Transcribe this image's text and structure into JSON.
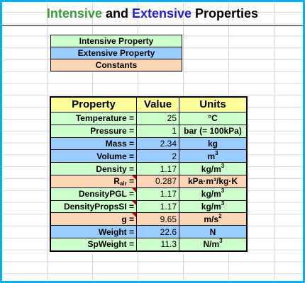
{
  "title": {
    "part1": "Intensive",
    "part2": " and ",
    "part3": "Extensive",
    "part4": " Properties"
  },
  "legend": {
    "intensive": "Intensive Property",
    "extensive": "Extensive Property",
    "constants": "Constants"
  },
  "table": {
    "headers": {
      "property": "Property",
      "value": "Value",
      "units": "Units"
    },
    "rows": [
      {
        "property": "Temperature =",
        "value": "25",
        "units": "°C",
        "type": "intensive"
      },
      {
        "property": "Pressure =",
        "value": "1",
        "units": "bar (= 100kPa)",
        "type": "intensive"
      },
      {
        "property": "Mass =",
        "value": "2.34",
        "units": "kg",
        "type": "extensive"
      },
      {
        "property": "Volume =",
        "value": "2",
        "units_base": "m",
        "units_sup": "3",
        "type": "extensive"
      },
      {
        "property": "Density =",
        "value": "1.17",
        "units_base": "kg/m",
        "units_sup": "3",
        "type": "intensive"
      },
      {
        "property_base": "R",
        "property_sub": "air",
        "property_tail": " =",
        "value": "0.287",
        "units": "kPa·m³/kg·K",
        "type": "constant"
      },
      {
        "property": "DensityPGL =",
        "value": "1.17",
        "units_base": "kg/m",
        "units_sup": "3",
        "type": "intensive"
      },
      {
        "property": "DensityPropsSI =",
        "value": "1.17",
        "units_base": "kg/m",
        "units_sup": "3",
        "type": "intensive"
      },
      {
        "property": "g =",
        "value": "9.65",
        "units_base": "m/s",
        "units_sup": "2",
        "type": "constant"
      },
      {
        "property": "Weight =",
        "value": "22.6",
        "units": "N",
        "type": "extensive"
      },
      {
        "property": "SpWeight =",
        "value": "11.3",
        "units_base": "N/m",
        "units_sup": "3",
        "type": "intensive"
      }
    ]
  },
  "colors": {
    "intensive": "#ccffcc",
    "extensive": "#99ccff",
    "constant": "#fcd5b4",
    "header": "#ffff99",
    "border_accent": "#00b0f0",
    "comment_marker": "#c00000"
  }
}
